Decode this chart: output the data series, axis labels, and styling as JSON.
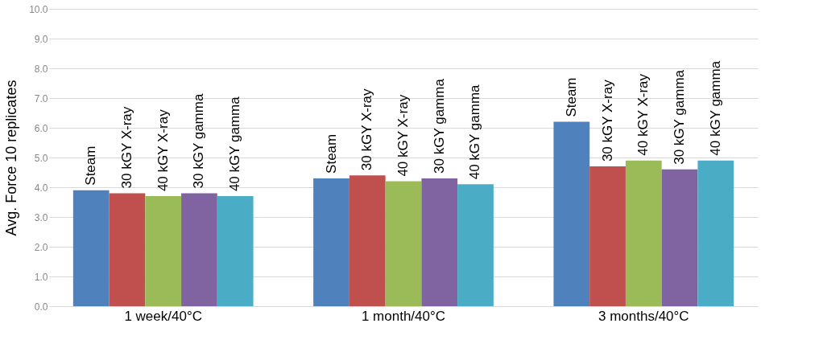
{
  "chart_data": {
    "type": "bar",
    "ylabel": "Avg. Force 10 replicates",
    "categories": [
      "1 week/40°C",
      "1 month/40°C",
      "3 months/40°C"
    ],
    "series": [
      {
        "name": "Steam",
        "color": "#4f81bd",
        "values": [
          3.9,
          4.3,
          6.2
        ]
      },
      {
        "name": "30 kGY X-ray",
        "color": "#c0504d",
        "values": [
          3.8,
          4.4,
          4.7
        ]
      },
      {
        "name": "40 kGY X-ray",
        "color": "#9bbb59",
        "values": [
          3.7,
          4.2,
          4.9
        ]
      },
      {
        "name": "30 kGY gamma",
        "color": "#8064a2",
        "values": [
          3.8,
          4.3,
          4.6
        ]
      },
      {
        "name": "40 kGY gamma",
        "color": "#4bacc6",
        "values": [
          3.7,
          4.1,
          4.9
        ]
      }
    ],
    "ylim": [
      0,
      10
    ],
    "yticks": [
      {
        "value": 0,
        "label": "0.0"
      },
      {
        "value": 1,
        "label": "1.0"
      },
      {
        "value": 2,
        "label": "2.0"
      },
      {
        "value": 3,
        "label": "3.0"
      },
      {
        "value": 4,
        "label": "4.0"
      },
      {
        "value": 5,
        "label": "5.0"
      },
      {
        "value": 6,
        "label": "6.0"
      },
      {
        "value": 7,
        "label": "7.0"
      },
      {
        "value": 8,
        "label": "8.0"
      },
      {
        "value": 9,
        "label": "9.0"
      },
      {
        "value": 10,
        "label": "10.0"
      }
    ],
    "grid": "y",
    "legend": false
  }
}
